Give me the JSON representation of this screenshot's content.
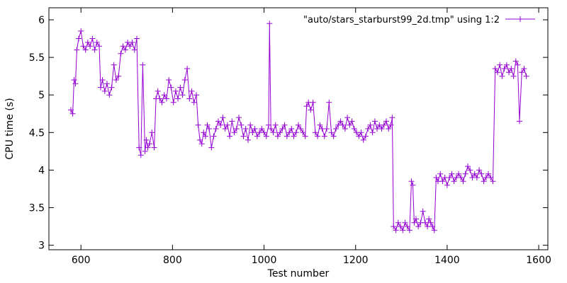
{
  "chart_data": {
    "type": "line",
    "title": "",
    "xlabel": "Test number",
    "ylabel": "CPU time (s)",
    "xlim": [
      530,
      1620
    ],
    "ylim": [
      2.94,
      6.16
    ],
    "xticks": [
      600,
      800,
      1000,
      1200,
      1400,
      1600
    ],
    "yticks": [
      3,
      3.5,
      4,
      4.5,
      5,
      5.5,
      6
    ],
    "xtick_labels": [
      "600",
      "800",
      "1000",
      "1200",
      "1400",
      "1600"
    ],
    "ytick_labels": [
      "3",
      "3.5",
      "4",
      "4.5",
      "5",
      "5.5",
      "6"
    ],
    "grid": false,
    "legend_position": "top-right",
    "series": [
      {
        "name": "\"auto/stars_starburst99_2d.tmp\" using 1:2",
        "color": "#9400d3",
        "marker": "plus",
        "x": [
          578,
          582,
          585,
          588,
          591,
          595,
          600,
          605,
          610,
          615,
          620,
          625,
          630,
          635,
          640,
          643,
          647,
          652,
          657,
          662,
          667,
          672,
          677,
          682,
          687,
          692,
          697,
          702,
          707,
          712,
          717,
          722,
          727,
          731,
          735,
          740,
          743,
          746,
          750,
          755,
          760,
          764,
          768,
          772,
          777,
          782,
          787,
          792,
          797,
          802,
          807,
          812,
          817,
          822,
          827,
          832,
          837,
          842,
          847,
          852,
          856,
          860,
          864,
          868,
          872,
          876,
          880,
          885,
          890,
          895,
          900,
          905,
          910,
          915,
          920,
          925,
          930,
          935,
          940,
          945,
          950,
          955,
          960,
          965,
          970,
          975,
          980,
          985,
          990,
          995,
          1000,
          1005,
          1010,
          1012,
          1015,
          1020,
          1025,
          1030,
          1035,
          1040,
          1045,
          1050,
          1055,
          1060,
          1065,
          1070,
          1075,
          1080,
          1085,
          1090,
          1093,
          1097,
          1102,
          1107,
          1112,
          1117,
          1122,
          1127,
          1132,
          1137,
          1142,
          1147,
          1152,
          1157,
          1162,
          1167,
          1172,
          1177,
          1182,
          1187,
          1192,
          1197,
          1202,
          1207,
          1212,
          1217,
          1222,
          1227,
          1232,
          1237,
          1242,
          1247,
          1252,
          1257,
          1262,
          1267,
          1272,
          1277,
          1280,
          1283,
          1288,
          1293,
          1298,
          1303,
          1308,
          1313,
          1318,
          1322,
          1325,
          1328,
          1332,
          1337,
          1342,
          1347,
          1352,
          1357,
          1360,
          1364,
          1368,
          1372,
          1376,
          1380,
          1385,
          1390,
          1395,
          1400,
          1405,
          1410,
          1415,
          1420,
          1425,
          1430,
          1435,
          1440,
          1445,
          1450,
          1455,
          1460,
          1465,
          1470,
          1475,
          1480,
          1485,
          1490,
          1495,
          1500,
          1505,
          1510,
          1515,
          1520,
          1525,
          1530,
          1535,
          1540,
          1545,
          1550,
          1554,
          1558,
          1563,
          1568,
          1573
        ],
        "values": [
          4.8,
          4.75,
          5.2,
          5.15,
          5.6,
          5.75,
          5.85,
          5.65,
          5.6,
          5.7,
          5.65,
          5.75,
          5.6,
          5.7,
          5.65,
          5.1,
          5.2,
          5.05,
          5.15,
          5.0,
          5.1,
          5.4,
          5.2,
          5.25,
          5.55,
          5.65,
          5.6,
          5.7,
          5.65,
          5.7,
          5.6,
          5.75,
          4.3,
          4.2,
          5.4,
          4.25,
          4.4,
          4.3,
          4.35,
          4.5,
          4.3,
          4.95,
          5.05,
          4.95,
          4.9,
          5.0,
          4.95,
          5.2,
          5.1,
          4.9,
          5.05,
          4.95,
          5.1,
          5.0,
          5.2,
          5.35,
          4.95,
          5.05,
          4.9,
          5.0,
          4.6,
          4.4,
          4.35,
          4.5,
          4.45,
          4.6,
          4.55,
          4.3,
          4.45,
          4.55,
          4.65,
          4.6,
          4.7,
          4.55,
          4.6,
          4.45,
          4.65,
          4.5,
          4.55,
          4.7,
          4.6,
          4.45,
          4.55,
          4.4,
          4.6,
          4.5,
          4.55,
          4.45,
          4.5,
          4.55,
          4.5,
          4.45,
          4.6,
          5.95,
          4.55,
          4.5,
          4.6,
          4.45,
          4.5,
          4.55,
          4.6,
          4.45,
          4.5,
          4.55,
          4.45,
          4.5,
          4.6,
          4.55,
          4.5,
          4.45,
          4.85,
          4.9,
          4.8,
          4.9,
          4.5,
          4.45,
          4.6,
          4.55,
          4.45,
          4.55,
          4.9,
          4.5,
          4.45,
          4.55,
          4.6,
          4.65,
          4.6,
          4.55,
          4.7,
          4.6,
          4.65,
          4.55,
          4.5,
          4.45,
          4.5,
          4.4,
          4.45,
          4.55,
          4.6,
          4.5,
          4.65,
          4.55,
          4.6,
          4.55,
          4.6,
          4.65,
          4.55,
          4.6,
          4.7,
          3.25,
          3.2,
          3.3,
          3.25,
          3.2,
          3.3,
          3.25,
          3.2,
          3.85,
          3.8,
          3.3,
          3.35,
          3.25,
          3.3,
          3.45,
          3.3,
          3.25,
          3.35,
          3.3,
          3.25,
          3.2,
          3.9,
          3.85,
          3.95,
          3.85,
          3.9,
          3.8,
          3.9,
          3.95,
          3.85,
          3.9,
          3.95,
          3.9,
          3.85,
          3.95,
          4.05,
          4.0,
          3.9,
          3.95,
          3.9,
          4.0,
          3.95,
          3.85,
          3.9,
          3.95,
          3.9,
          3.85,
          5.35,
          5.3,
          5.4,
          5.25,
          5.35,
          5.4,
          5.3,
          5.35,
          5.25,
          5.45,
          5.4,
          4.65,
          5.3,
          5.35,
          5.25
        ]
      }
    ]
  }
}
